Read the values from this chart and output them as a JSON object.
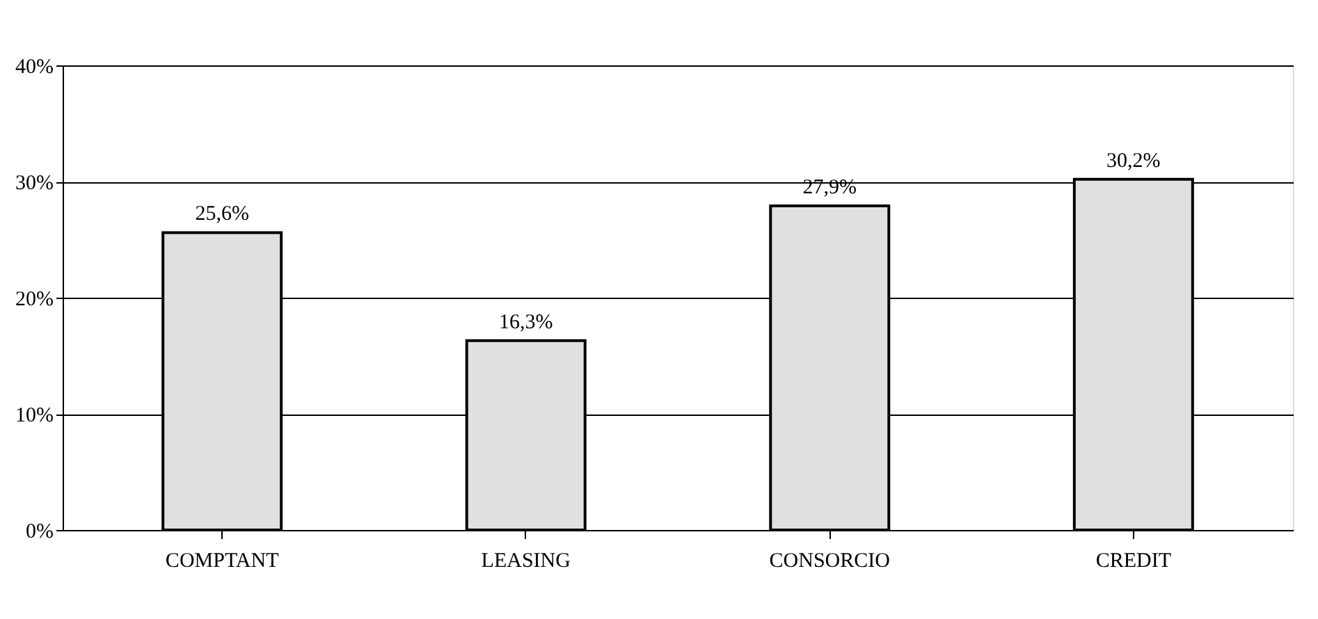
{
  "chart_data": {
    "type": "bar",
    "categories": [
      "COMPTANT",
      "LEASING",
      "CONSORCIO",
      "CREDIT"
    ],
    "values": [
      25.6,
      16.3,
      27.9,
      30.2
    ],
    "value_labels": [
      "25,6%",
      "16,3%",
      "27,9%",
      "30,2%"
    ],
    "color": "#e0e0e0",
    "ylim": [
      0,
      40
    ],
    "yticks": [
      {
        "value": 0,
        "label": "0%"
      },
      {
        "value": 10,
        "label": "10%"
      },
      {
        "value": 20,
        "label": "20%"
      },
      {
        "value": 30,
        "label": "30%"
      },
      {
        "value": 40,
        "label": "40%"
      }
    ],
    "grid": "y"
  }
}
